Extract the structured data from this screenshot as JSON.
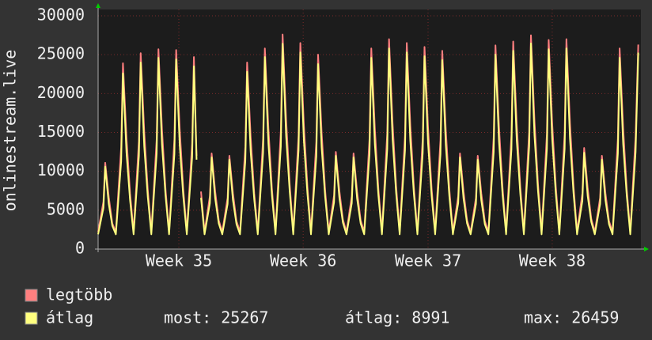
{
  "chart_data": {
    "type": "line",
    "ylabel": "onlinestream.live",
    "x": [
      0,
      0.3,
      0.4,
      0.6,
      0.8,
      1,
      1.3,
      1.4,
      1.6,
      1.8,
      2,
      2.3,
      2.4,
      2.6,
      2.8,
      3,
      3.3,
      3.4,
      3.6,
      3.8,
      4,
      4.3,
      4.4,
      4.6,
      4.8,
      5,
      5.3,
      5.4,
      5.55,
      5.65,
      5.8,
      6,
      6.3,
      6.4,
      6.6,
      6.8,
      7,
      7.3,
      7.4,
      7.6,
      7.8,
      8,
      8.3,
      8.4,
      8.6,
      8.8,
      9,
      9.3,
      9.4,
      9.6,
      9.8,
      10,
      10.3,
      10.4,
      10.6,
      10.8,
      11,
      11.3,
      11.4,
      11.6,
      11.8,
      12,
      12.3,
      12.4,
      12.6,
      12.8,
      13,
      13.3,
      13.4,
      13.6,
      13.8,
      14,
      14.3,
      14.4,
      14.6,
      14.8,
      15,
      15.3,
      15.4,
      15.6,
      15.8,
      16,
      16.3,
      16.4,
      16.6,
      16.8,
      17,
      17.3,
      17.4,
      17.6,
      17.8,
      18,
      18.3,
      18.4,
      18.6,
      18.8,
      19,
      19.3,
      19.4,
      19.6,
      19.8,
      20,
      20.3,
      20.4,
      20.6,
      20.8,
      21,
      21.3,
      21.4,
      21.6,
      21.8,
      22,
      22.3,
      22.4,
      22.6,
      22.8,
      23,
      23.3,
      23.4,
      23.6,
      23.8,
      24,
      24.3,
      24.4,
      24.6,
      24.8,
      25,
      25.3,
      25.4,
      25.6,
      25.8,
      26,
      26.3,
      26.4,
      26.6,
      26.8,
      27,
      27.3,
      27.4,
      27.6,
      27.8,
      28,
      28.3,
      28.4,
      28.6,
      28.8,
      29,
      29.3,
      29.4,
      29.6,
      29.8,
      30,
      30.3,
      30.45
    ],
    "series": [
      {
        "name": "legtöbb",
        "color": "#ff7f7f",
        "values": [
          2200,
          6100,
          11100,
          6700,
          3300,
          2200,
          13100,
          23900,
          14300,
          7200,
          2200,
          13900,
          25200,
          15100,
          7600,
          2200,
          14100,
          25700,
          15400,
          7700,
          2200,
          14100,
          25600,
          15400,
          7700,
          2200,
          13600,
          24700,
          12000,
          null,
          7400,
          2200,
          6800,
          12300,
          7400,
          3700,
          2200,
          6600,
          12000,
          7200,
          3600,
          2200,
          13200,
          24000,
          14400,
          7200,
          2200,
          14200,
          25800,
          15500,
          7700,
          2200,
          15200,
          27600,
          16600,
          8300,
          2200,
          14600,
          26500,
          15900,
          8000,
          2200,
          13800,
          25000,
          15000,
          7500,
          2200,
          6900,
          12500,
          7500,
          3800,
          2200,
          6800,
          12300,
          7400,
          3700,
          2200,
          14200,
          25800,
          15500,
          7700,
          2200,
          14900,
          27000,
          16200,
          8100,
          2200,
          14600,
          26500,
          15900,
          8000,
          2200,
          14300,
          26000,
          15600,
          7800,
          2200,
          14000,
          25500,
          15300,
          7700,
          2200,
          6800,
          12300,
          7400,
          3700,
          2200,
          6600,
          12000,
          7200,
          3600,
          2200,
          14400,
          26200,
          15700,
          7900,
          2200,
          14700,
          26700,
          16000,
          8000,
          2200,
          15100,
          27500,
          16500,
          8300,
          2200,
          14800,
          26900,
          16100,
          8100,
          2200,
          14900,
          27000,
          16200,
          8100,
          2200,
          7200,
          13000,
          7800,
          3900,
          2200,
          6600,
          12000,
          7200,
          3600,
          2200,
          14200,
          25800,
          15500,
          7700,
          2200,
          14500,
          26300
        ]
      },
      {
        "name": "átlag",
        "color": "#ffff7f",
        "values": [
          1900,
          5300,
          10600,
          5800,
          3000,
          1900,
          11300,
          22600,
          12400,
          6300,
          1900,
          12000,
          24000,
          13200,
          6700,
          1900,
          12300,
          24600,
          13500,
          6900,
          1900,
          12200,
          24400,
          13400,
          6800,
          1900,
          11800,
          23500,
          11500,
          null,
          6600,
          1900,
          5900,
          11800,
          6500,
          3300,
          1900,
          5800,
          11500,
          6300,
          3200,
          1900,
          11400,
          22800,
          12500,
          6400,
          1900,
          12400,
          24700,
          13600,
          6900,
          1900,
          13200,
          26400,
          14500,
          7400,
          1900,
          12700,
          25300,
          13900,
          7100,
          1900,
          11900,
          23800,
          13100,
          6700,
          1900,
          6000,
          12000,
          6600,
          3400,
          1900,
          5900,
          11800,
          6500,
          3300,
          1900,
          12300,
          24600,
          13500,
          6900,
          1900,
          12900,
          25800,
          14200,
          7200,
          1900,
          12700,
          25300,
          13900,
          7100,
          1900,
          12400,
          24800,
          13600,
          6900,
          1900,
          12200,
          24300,
          13400,
          6800,
          1900,
          5900,
          11800,
          6500,
          3300,
          1900,
          5800,
          11500,
          6300,
          3200,
          1900,
          12500,
          25000,
          13800,
          7000,
          1900,
          12800,
          25500,
          14000,
          7100,
          1900,
          13200,
          26459,
          14600,
          7400,
          1900,
          12900,
          25700,
          14100,
          7200,
          1900,
          12900,
          25800,
          14200,
          7200,
          1900,
          6200,
          12400,
          6800,
          3500,
          1900,
          5800,
          11500,
          6300,
          3200,
          1900,
          12300,
          24600,
          13500,
          6900,
          1900,
          12500,
          25267
        ]
      }
    ],
    "xlim": [
      0,
      30.6
    ],
    "ylim": [
      0,
      30000
    ],
    "xticks": [
      {
        "value": 4.55,
        "label": "Week 35"
      },
      {
        "value": 11.56,
        "label": "Week 36"
      },
      {
        "value": 18.6,
        "label": "Week 37"
      },
      {
        "value": 25.6,
        "label": "Week 38"
      }
    ],
    "yticks": [
      0,
      5000,
      10000,
      15000,
      20000,
      25000,
      30000
    ],
    "grid": true,
    "legend_stats": [
      "most: 25267",
      "átlag: 8991",
      "max: 26459"
    ]
  }
}
